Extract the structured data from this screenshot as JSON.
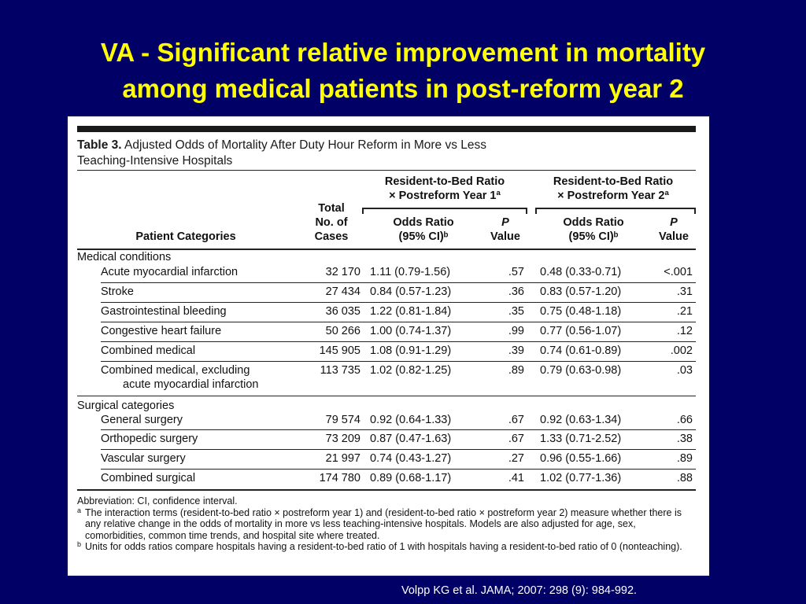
{
  "title": {
    "line1": "VA - Significant relative improvement in mortality",
    "line2": "among medical patients in post-reform year 2"
  },
  "table": {
    "caption_label": "Table 3.",
    "caption_line1": "Adjusted Odds of Mortality After Duty Hour Reform in More vs Less",
    "caption_line2": "Teaching-Intensive Hospitals",
    "group1_line1": "Resident-to-Bed Ratio",
    "group1_line2": "× Postreform Year 1ª",
    "group2_line1": "Resident-to-Bed Ratio",
    "group2_line2": "× Postreform Year 2ª",
    "col_category": "Patient Categories",
    "col_total_line1": "Total",
    "col_total_line2": "No. of",
    "col_total_line3": "Cases",
    "col_or_line1": "Odds Ratio",
    "col_or_line2": "(95% CI)ᵇ",
    "col_p_line1": "P",
    "col_p_line2": "Value",
    "section_medical": "Medical conditions",
    "section_surgical": "Surgical categories",
    "medical_rows": [
      {
        "category": "Acute myocardial infarction",
        "total": "32 170",
        "or1": "1.11 (0.79-1.56)",
        "p1": ".57",
        "or2": "0.48 (0.33-0.71)",
        "p2": "<.001"
      },
      {
        "category": "Stroke",
        "total": "27 434",
        "or1": "0.84 (0.57-1.23)",
        "p1": ".36",
        "or2": "0.83 (0.57-1.20)",
        "p2": ".31"
      },
      {
        "category": "Gastrointestinal bleeding",
        "total": "36 035",
        "or1": "1.22 (0.81-1.84)",
        "p1": ".35",
        "or2": "0.75 (0.48-1.18)",
        "p2": ".21"
      },
      {
        "category": "Congestive heart failure",
        "total": "50 266",
        "or1": "1.00 (0.74-1.37)",
        "p1": ".99",
        "or2": "0.77 (0.56-1.07)",
        "p2": ".12"
      },
      {
        "category": "Combined medical",
        "total": "145 905",
        "or1": "1.08 (0.91-1.29)",
        "p1": ".39",
        "or2": "0.74 (0.61-0.89)",
        "p2": ".002"
      },
      {
        "category": "Combined medical, excluding",
        "category2": "acute myocardial infarction",
        "total": "113 735",
        "or1": "1.02 (0.82-1.25)",
        "p1": ".89",
        "or2": "0.79 (0.63-0.98)",
        "p2": ".03"
      }
    ],
    "surgical_rows": [
      {
        "category": "General surgery",
        "total": "79 574",
        "or1": "0.92 (0.64-1.33)",
        "p1": ".67",
        "or2": "0.92 (0.63-1.34)",
        "p2": ".66"
      },
      {
        "category": "Orthopedic surgery",
        "total": "73 209",
        "or1": "0.87 (0.47-1.63)",
        "p1": ".67",
        "or2": "1.33 (0.71-2.52)",
        "p2": ".38"
      },
      {
        "category": "Vascular surgery",
        "total": "21 997",
        "or1": "0.74 (0.43-1.27)",
        "p1": ".27",
        "or2": "0.96 (0.55-1.66)",
        "p2": ".89"
      },
      {
        "category": "Combined surgical",
        "total": "174 780",
        "or1": "0.89 (0.68-1.17)",
        "p1": ".41",
        "or2": "1.02 (0.77-1.36)",
        "p2": ".88"
      }
    ],
    "footnote_abbrev": "Abbreviation: CI, confidence interval.",
    "footnote_a_mark": "a",
    "footnote_a": "The interaction terms (resident-to-bed ratio × postreform year 1) and (resident-to-bed ratio × postreform year 2) measure whether there is any relative change in the odds of mortality in more vs less teaching-intensive hospitals. Models are also adjusted for age, sex, comorbidities, common time trends, and hospital site where treated.",
    "footnote_b_mark": "b",
    "footnote_b": "Units for odds ratios compare hospitals having a resident-to-bed ratio of 1 with hospitals having a resident-to-bed ratio of 0 (nonteaching)."
  },
  "citation": "Volpp KG et al. JAMA; 2007: 298 (9): 984-992."
}
